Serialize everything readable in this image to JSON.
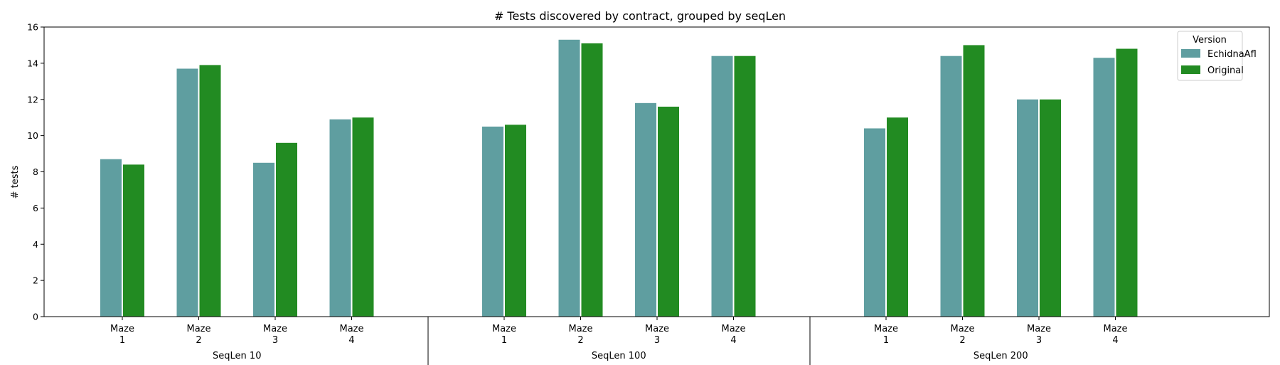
{
  "chart_data": {
    "type": "bar",
    "title": "# Tests discovered by contract, grouped by seqLen",
    "xlabel": "",
    "ylabel": "# tests",
    "ylim": [
      0,
      16
    ],
    "yticks": [
      0,
      2,
      4,
      6,
      8,
      10,
      12,
      14,
      16
    ],
    "grid": false,
    "groups": [
      {
        "label": "SeqLen 10",
        "categories": [
          "Maze\n1",
          "Maze\n2",
          "Maze\n3",
          "Maze\n4"
        ]
      },
      {
        "label": "SeqLen 100",
        "categories": [
          "Maze\n1",
          "Maze\n2",
          "Maze\n3",
          "Maze\n4"
        ]
      },
      {
        "label": "SeqLen 200",
        "categories": [
          "Maze\n1",
          "Maze\n2",
          "Maze\n3",
          "Maze\n4"
        ]
      }
    ],
    "series": [
      {
        "name": "EchidnaAfl",
        "color": "#5f9ea0",
        "values": [
          8.7,
          13.7,
          8.5,
          10.9,
          10.5,
          15.3,
          11.8,
          14.4,
          10.4,
          14.4,
          12.0,
          14.3
        ]
      },
      {
        "name": "Original",
        "color": "#228b22",
        "values": [
          8.4,
          13.9,
          9.6,
          11.0,
          10.6,
          15.1,
          11.6,
          14.4,
          11.0,
          15.0,
          12.0,
          14.8
        ]
      }
    ],
    "legend": {
      "title": "Version",
      "placement": "top-right"
    }
  }
}
